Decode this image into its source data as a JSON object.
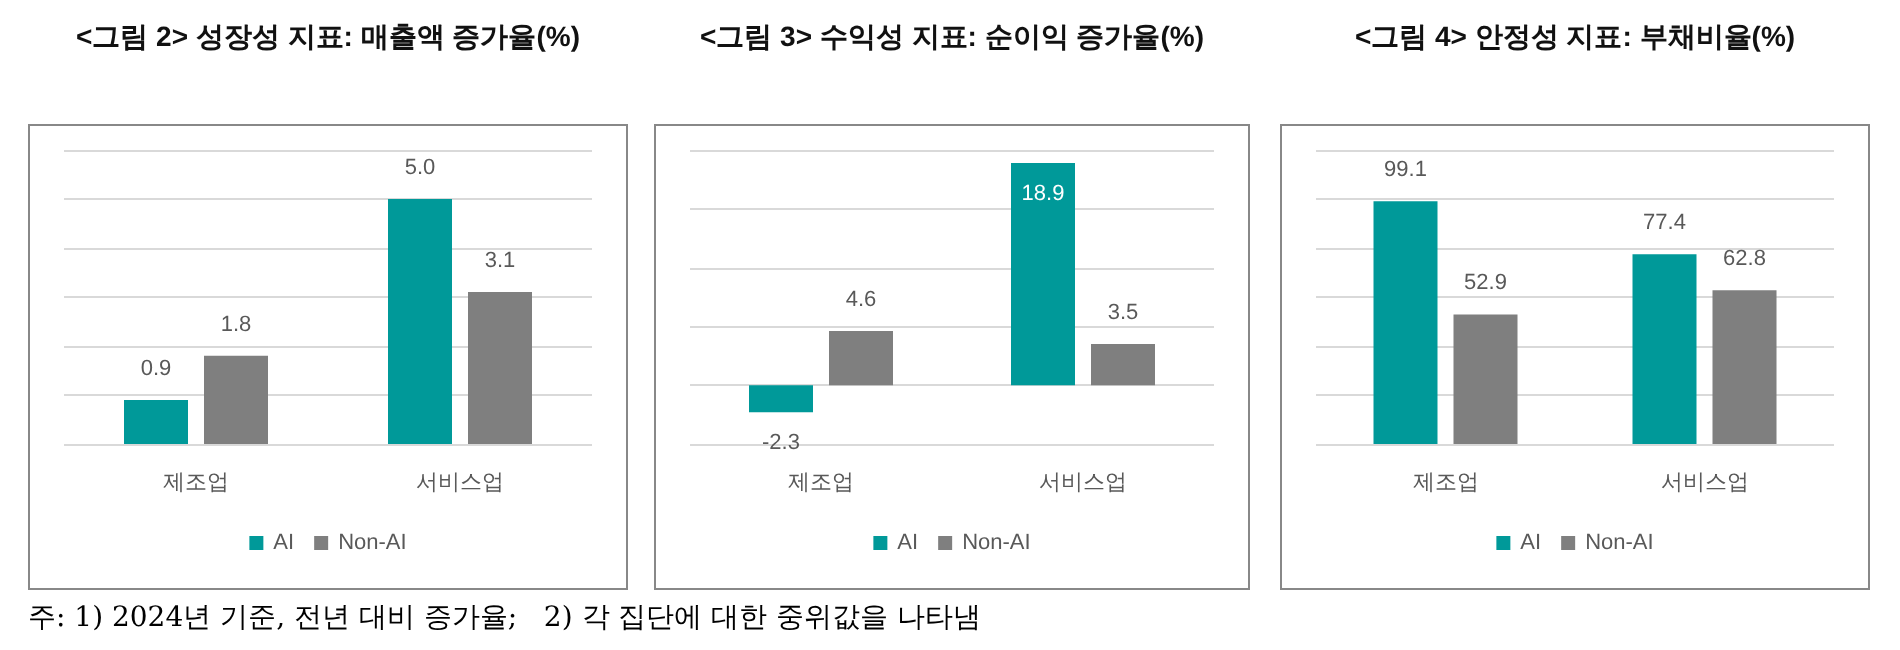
{
  "chart_data": [
    {
      "type": "bar",
      "title": "<그림 2> 성장성 지표: 매출액 증가율(%)",
      "categories": [
        "제조업",
        "서비스업"
      ],
      "series": [
        {
          "name": "AI",
          "color": "#009999",
          "values": [
            0.9,
            5.0
          ],
          "value_labels": [
            "0.9",
            "5.0"
          ]
        },
        {
          "name": "Non-AI",
          "color": "#7f7f7f",
          "values": [
            1.8,
            3.1
          ],
          "value_labels": [
            "1.8",
            "3.1"
          ]
        }
      ],
      "ylim": [
        0,
        6
      ],
      "yticks": [
        {
          "value": 0,
          "label": null
        },
        {
          "value": 1,
          "label": null
        },
        {
          "value": 2,
          "label": null
        },
        {
          "value": 3,
          "label": null
        },
        {
          "value": 4,
          "label": null
        },
        {
          "value": 5,
          "label": null
        },
        {
          "value": 6,
          "label": null
        }
      ],
      "grid": "y",
      "legend": "bottom",
      "tick_labels": "x",
      "annotations": [
        "주: 1) 2024년 기준, 전년 대비 증가율;   2) 각 집단에 대한 중위값을 나타냄"
      ]
    },
    {
      "type": "bar",
      "title": "<그림 3> 수익성 지표: 순이익 증가율(%)",
      "categories": [
        "제조업",
        "서비스업"
      ],
      "series": [
        {
          "name": "AI",
          "color": "#009999",
          "values": [
            -2.3,
            18.9
          ]
        },
        {
          "name": "Non-AI",
          "color": "#7f7f7f",
          "values": [
            4.6,
            3.5
          ]
        }
      ],
      "ylim": [
        -5,
        20
      ],
      "yticks": [
        {
          "value": -5,
          "label": null
        },
        {
          "value": 0,
          "label": null
        },
        {
          "value": 5,
          "label": null
        },
        {
          "value": 10,
          "label": null
        },
        {
          "value": 15,
          "label": null
        },
        {
          "value": 20,
          "label": null
        }
      ],
      "grid": "y",
      "legend": "bottom",
      "tick_labels": "x",
      "data_labels": true
    },
    {
      "type": "bar",
      "title": "<그림 4> 안정성 지표: 부채비율(%)",
      "categories": [
        "제조업",
        "서비스업"
      ],
      "series": [
        {
          "name": "AI",
          "color": "#009999",
          "values": [
            99.1,
            77.4
          ]
        },
        {
          "name": "Non-AI",
          "color": "#7f7f7f",
          "values": [
            52.9,
            62.8
          ]
        }
      ],
      "ylim": [
        0,
        120
      ],
      "yticks": [
        {
          "value": 0,
          "label": null
        },
        {
          "value": 20,
          "label": null
        },
        {
          "value": 40,
          "label": null
        },
        {
          "value": 60,
          "label": null
        },
        {
          "value": 80,
          "label": null
        },
        {
          "value": 100,
          "label": null
        },
        {
          "value": 120,
          "label": null
        }
      ],
      "grid": "y",
      "legend": "bottom",
      "tick_labels": "x",
      "data_labels": true
    }
  ]
}
